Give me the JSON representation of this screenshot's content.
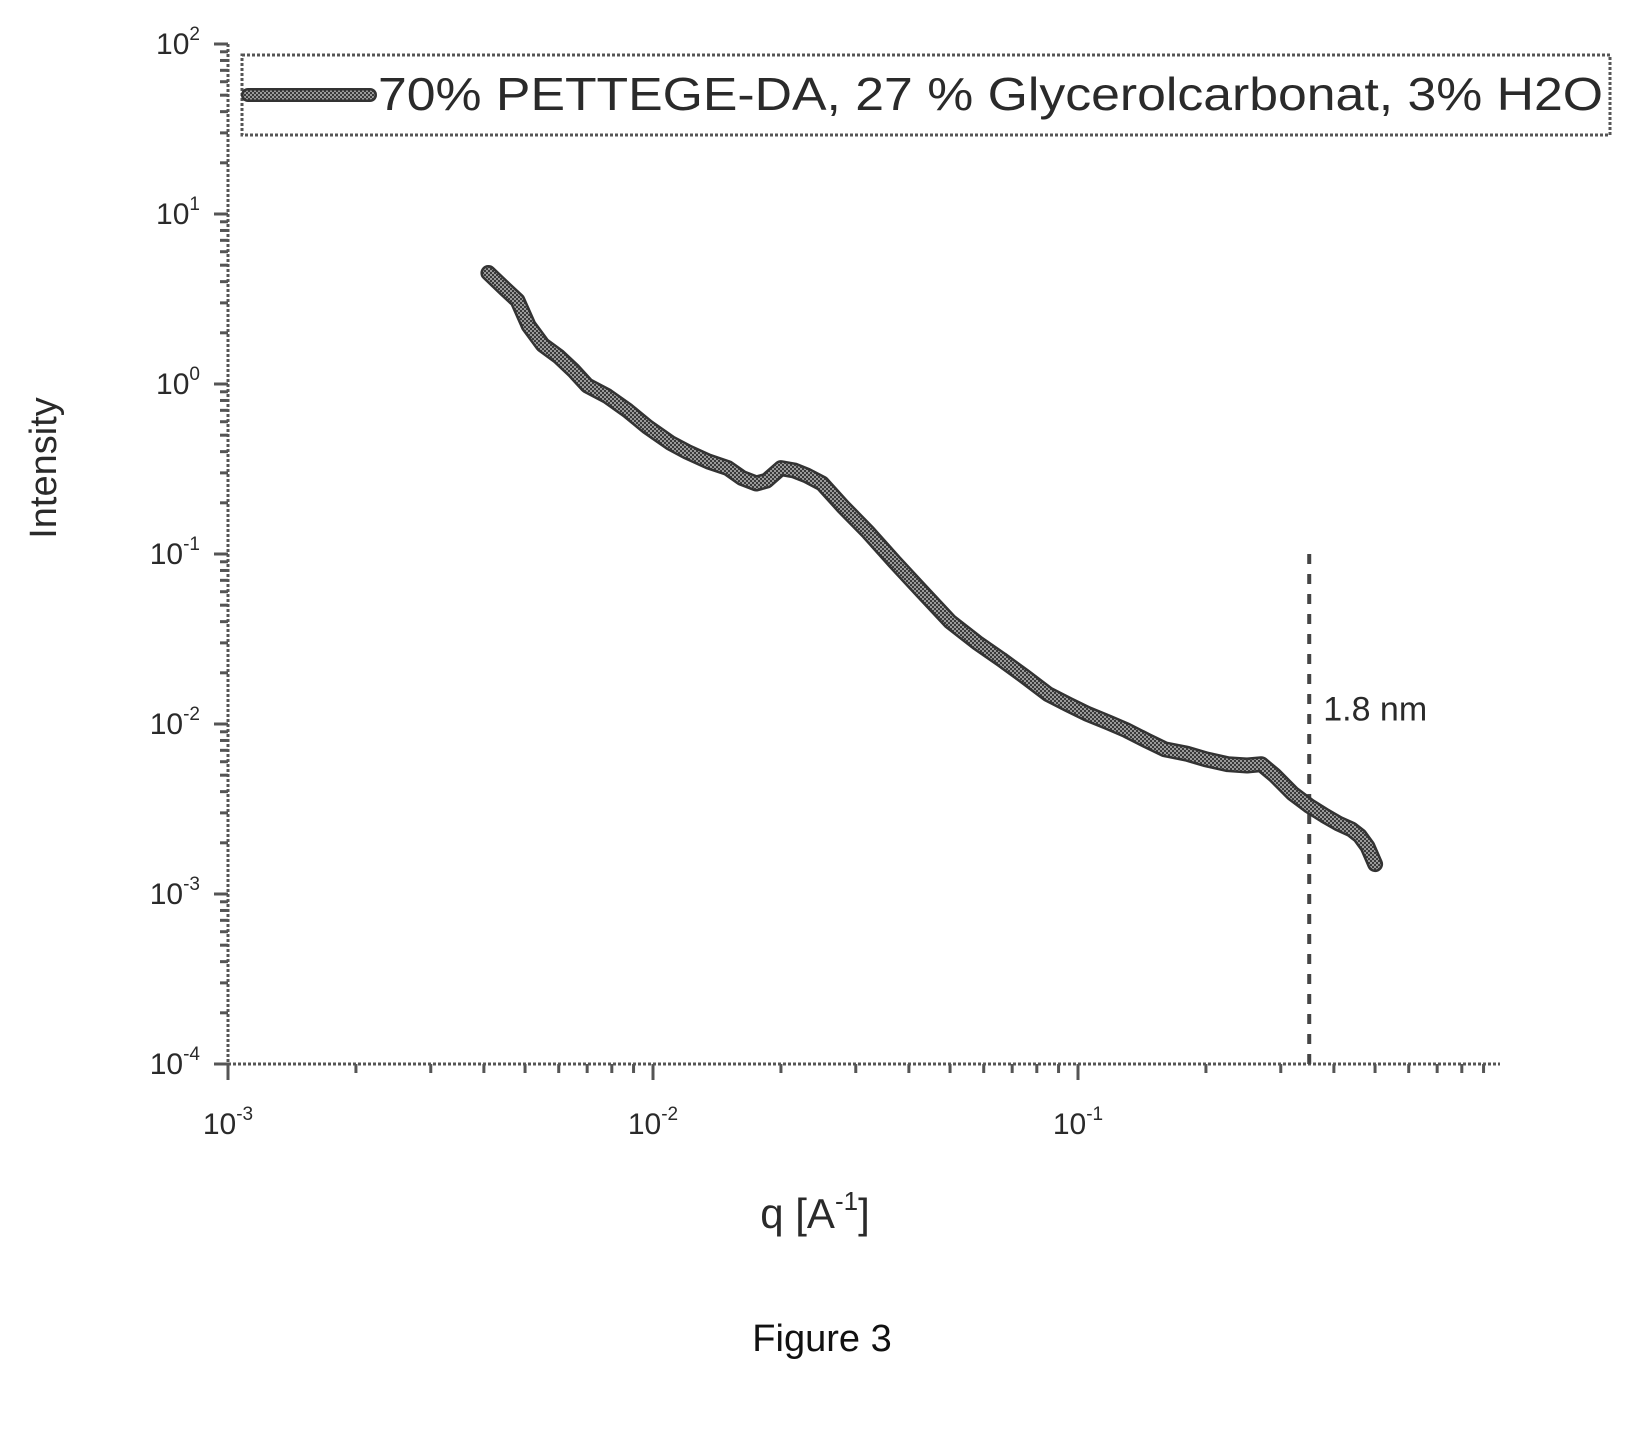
{
  "figure": {
    "caption": "Figure 3"
  },
  "chart_data": {
    "type": "line",
    "title": "",
    "xlabel_main": "q [A",
    "xlabel_sup": "-1",
    "xlabel_end": "]",
    "ylabel": "Intensity",
    "xscale": "log",
    "yscale": "log",
    "xlim": [
      0.001,
      1.0
    ],
    "ylim": [
      0.0001,
      100
    ],
    "grid": false,
    "legend": "top",
    "x_ticks": [
      {
        "base": "10",
        "exp": "-3",
        "value": 0.001
      },
      {
        "base": "10",
        "exp": "-2",
        "value": 0.01
      },
      {
        "base": "10",
        "exp": "-1",
        "value": 0.1
      }
    ],
    "y_ticks": [
      {
        "base": "10",
        "exp": "2",
        "value": 100
      },
      {
        "base": "10",
        "exp": "1",
        "value": 10
      },
      {
        "base": "10",
        "exp": "0",
        "value": 1
      },
      {
        "base": "10",
        "exp": "-1",
        "value": 0.1
      },
      {
        "base": "10",
        "exp": "-2",
        "value": 0.01
      },
      {
        "base": "10",
        "exp": "-3",
        "value": 0.001
      },
      {
        "base": "10",
        "exp": "-4",
        "value": 0.0001
      }
    ],
    "series": [
      {
        "name": "70% PETTEGE-DA, 27 % Glycerolcarbonat, 3% H2O",
        "color": "#333333",
        "x": [
          0.0041,
          0.0045,
          0.0048,
          0.0051,
          0.0055,
          0.006,
          0.0065,
          0.007,
          0.0078,
          0.0087,
          0.0097,
          0.011,
          0.012,
          0.0135,
          0.015,
          0.0162,
          0.0175,
          0.0185,
          0.02,
          0.0215,
          0.023,
          0.025,
          0.028,
          0.032,
          0.037,
          0.043,
          0.05,
          0.058,
          0.066,
          0.075,
          0.085,
          0.095,
          0.105,
          0.118,
          0.13,
          0.145,
          0.16,
          0.18,
          0.2,
          0.225,
          0.25,
          0.27,
          0.29,
          0.32,
          0.35,
          0.38,
          0.41,
          0.44,
          0.46,
          0.48,
          0.5
        ],
        "y": [
          4.5,
          3.6,
          3.1,
          2.2,
          1.7,
          1.45,
          1.2,
          0.98,
          0.85,
          0.7,
          0.56,
          0.45,
          0.4,
          0.35,
          0.32,
          0.28,
          0.26,
          0.27,
          0.32,
          0.31,
          0.29,
          0.26,
          0.19,
          0.135,
          0.09,
          0.06,
          0.04,
          0.03,
          0.024,
          0.019,
          0.015,
          0.013,
          0.0115,
          0.0102,
          0.0092,
          0.008,
          0.0071,
          0.0067,
          0.0062,
          0.0058,
          0.0057,
          0.0058,
          0.005,
          0.0039,
          0.0033,
          0.0029,
          0.0026,
          0.0024,
          0.0022,
          0.0019,
          0.0015
        ]
      }
    ],
    "annotations": [
      {
        "type": "vline",
        "x": 0.35,
        "y_top": 0.1,
        "y_bottom": 0.0001,
        "label": "1.8 nm"
      }
    ]
  }
}
